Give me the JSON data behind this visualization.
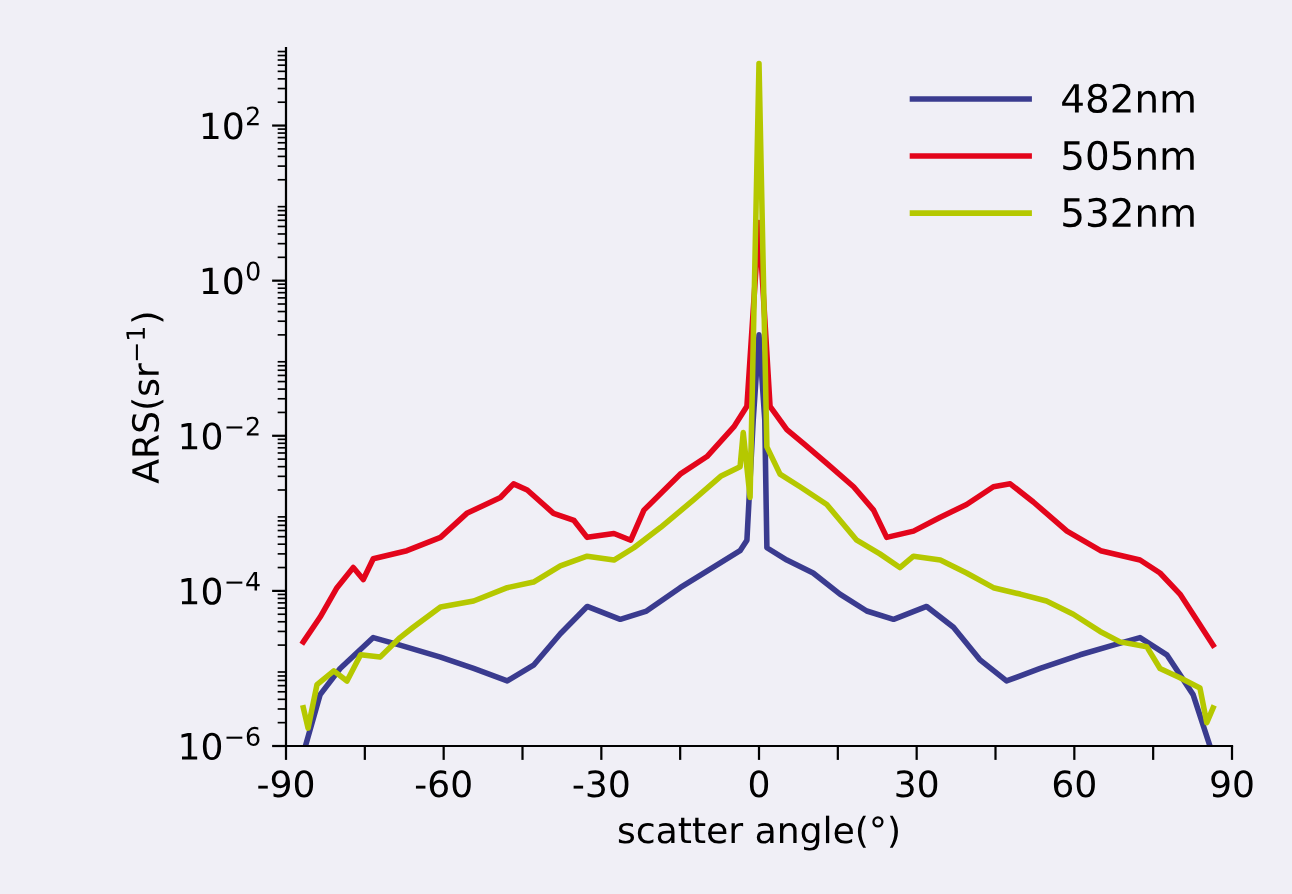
{
  "chart_data": {
    "type": "line",
    "xlabel": "scatter angle(°)",
    "ylabel": "ARS(sr$^{−1}$)",
    "log": "y",
    "xlim": [
      -90,
      90
    ],
    "ylim": [
      1e-06,
      1000
    ],
    "xticks": [
      -90,
      {
        "value": -75,
        "label": null
      },
      -60,
      {
        "value": -45,
        "label": null
      },
      -30,
      {
        "value": -15,
        "label": null
      },
      0,
      {
        "value": 15,
        "label": null
      },
      30,
      {
        "value": 45,
        "label": null
      },
      60,
      {
        "value": 75,
        "label": null
      },
      90
    ],
    "yticks": [
      {
        "value": 1e-06,
        "label": "10$^{−6}$"
      },
      {
        "value": 0.0001,
        "label": "10$^{−4}$"
      },
      {
        "value": 0.01,
        "label": "10$^{−2}$"
      },
      {
        "value": 1,
        "label": "10$^{0}$"
      },
      {
        "value": 100,
        "label": "10$^{2}$"
      }
    ],
    "grid": false,
    "legend": "top right",
    "line_style": "solid",
    "marker": "none",
    "series": [
      {
        "name": "482nm",
        "color": "#3a3b8f",
        "x": [
          -86.3,
          -83.5,
          -79.7,
          -73.4,
          -68.3,
          -60.6,
          -54.3,
          -47.9,
          -42.9,
          -37.8,
          -32.7,
          -26.4,
          -21.4,
          -15,
          -9.9,
          -3.6,
          -2.3,
          -1.1,
          0,
          1.1,
          1.5,
          5.3,
          10.3,
          15.4,
          20.5,
          25.6,
          31.9,
          37,
          42,
          47.1,
          53.5,
          61.1,
          67.4,
          72.5,
          77.6,
          82.6,
          85.8
        ],
        "values": [
          1e-06,
          4.6e-06,
          1e-05,
          2.5e-05,
          2e-05,
          1.4e-05,
          1e-05,
          6.9e-06,
          1.1e-05,
          2.8e-05,
          6.3e-05,
          4.3e-05,
          5.5e-05,
          0.00011,
          0.00018,
          0.00033,
          0.00045,
          0.016,
          0.2,
          0.016,
          0.00036,
          0.00025,
          0.00017,
          9.1e-05,
          5.5e-05,
          4.3e-05,
          6.3e-05,
          3.4e-05,
          1.3e-05,
          6.9e-06,
          1e-05,
          1.5e-05,
          2e-05,
          2.5e-05,
          1.5e-05,
          4.6e-06,
          1e-06
        ]
      },
      {
        "name": "505nm",
        "color": "#e3051b",
        "x": [
          -86.7,
          -83.5,
          -80.3,
          -77.2,
          -75.3,
          -73.4,
          -67.0,
          -60.6,
          -55.6,
          -49.2,
          -46.7,
          -44.1,
          -39.1,
          -35.2,
          -32.7,
          -27.6,
          -24.4,
          -21.9,
          -15.0,
          -9.9,
          -4.8,
          -2.3,
          0,
          2.1,
          5.3,
          8.5,
          12.9,
          18.0,
          21.8,
          24.3,
          29.4,
          34.5,
          39.5,
          44.6,
          47.8,
          52.2,
          58.6,
          65.0,
          72.5,
          76.3,
          80.1,
          82.6,
          86.4
        ],
        "values": [
          2.2e-05,
          4.6e-05,
          0.00011,
          0.0002,
          0.00014,
          0.00026,
          0.00033,
          0.00049,
          0.001,
          0.0016,
          0.0024,
          0.002,
          0.001,
          0.00081,
          0.00049,
          0.00055,
          0.00045,
          0.0011,
          0.0032,
          0.0054,
          0.013,
          0.024,
          5.6,
          0.024,
          0.012,
          0.0079,
          0.0044,
          0.0022,
          0.0011,
          0.00049,
          0.00059,
          0.00089,
          0.0013,
          0.0022,
          0.0024,
          0.0014,
          0.00059,
          0.00033,
          0.00025,
          0.00017,
          9.1e-05,
          5e-05,
          2e-05
        ]
      },
      {
        "name": "532nm",
        "color": "#b5c800",
        "x": [
          -86.7,
          -85.8,
          -84.1,
          -80.9,
          -78.4,
          -75.8,
          -72.1,
          -68.3,
          -65.8,
          -60.6,
          -54.3,
          -47.9,
          -42.9,
          -37.8,
          -32.7,
          -27.6,
          -23.8,
          -18.7,
          -12.4,
          -7.3,
          -3.6,
          -3.0,
          -1.7,
          0,
          1.5,
          4.0,
          7.8,
          12.9,
          18.6,
          23.0,
          26.8,
          29.4,
          34.5,
          39.5,
          44.6,
          49.7,
          54.7,
          59.8,
          64.9,
          68.7,
          73.8,
          76.3,
          80.1,
          83.9,
          85.2,
          86.4
        ],
        "values": [
          3.1e-06,
          1.7e-06,
          6.2e-06,
          9.3e-06,
          6.9e-06,
          1.5e-05,
          1.4e-05,
          2.5e-05,
          3.4e-05,
          6.2e-05,
          7.4e-05,
          0.00011,
          0.00013,
          0.00021,
          0.00028,
          0.00025,
          0.00036,
          0.00066,
          0.0015,
          0.003,
          0.004,
          0.011,
          0.0016,
          630,
          0.0072,
          0.0032,
          0.0022,
          0.0013,
          0.00045,
          0.0003,
          0.0002,
          0.00028,
          0.00025,
          0.00017,
          0.00011,
          9.1e-05,
          7.4e-05,
          5e-05,
          3e-05,
          2.2e-05,
          1.9e-05,
          1e-05,
          7.6e-06,
          5.6e-06,
          2e-06,
          3.1e-06
        ]
      }
    ]
  }
}
